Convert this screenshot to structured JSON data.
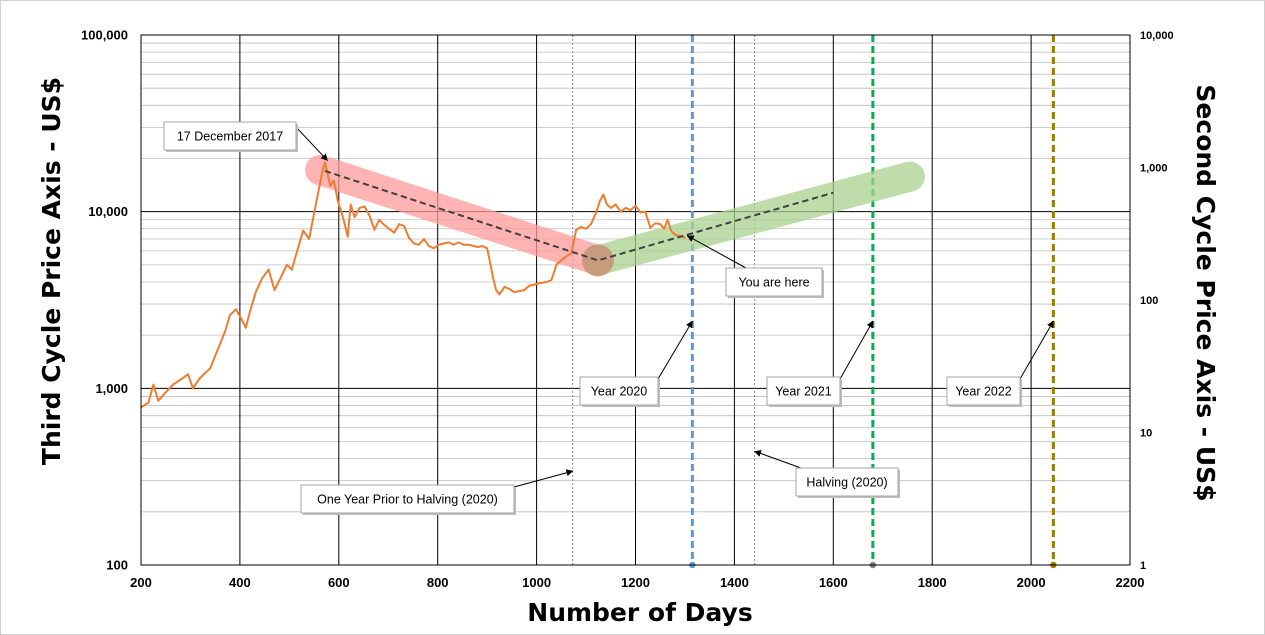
{
  "chart_data": {
    "type": "line",
    "xlabel": "Number of Days",
    "ylabel_left": "Third Cycle Price Axis - US$",
    "ylabel_right": "Second Cycle Price Axis - US$",
    "xlim": [
      200,
      2200
    ],
    "ylim_left": [
      100,
      100000
    ],
    "ylim_right": [
      1,
      10000
    ],
    "y_scale": "log",
    "grid": true,
    "x_ticks": [
      "200",
      "400",
      "600",
      "800",
      "1000",
      "1200",
      "1400",
      "1600",
      "1800",
      "2000",
      "2200"
    ],
    "y_ticks_left": [
      "100",
      "1,000",
      "10,000",
      "100,000"
    ],
    "y_ticks_right": [
      "1",
      "10",
      "100",
      "1,000",
      "10,000"
    ],
    "series": [
      {
        "color": "#ED7D31",
        "points": [
          [
            200,
            780
          ],
          [
            215,
            830
          ],
          [
            225,
            1050
          ],
          [
            235,
            850
          ],
          [
            250,
            950
          ],
          [
            265,
            1050
          ],
          [
            280,
            1120
          ],
          [
            295,
            1200
          ],
          [
            305,
            1000
          ],
          [
            320,
            1150
          ],
          [
            340,
            1300
          ],
          [
            355,
            1650
          ],
          [
            370,
            2100
          ],
          [
            380,
            2600
          ],
          [
            392,
            2800
          ],
          [
            402,
            2500
          ],
          [
            412,
            2200
          ],
          [
            420,
            2700
          ],
          [
            432,
            3500
          ],
          [
            445,
            4200
          ],
          [
            458,
            4700
          ],
          [
            470,
            3600
          ],
          [
            482,
            4200
          ],
          [
            495,
            5000
          ],
          [
            505,
            4700
          ],
          [
            515,
            5900
          ],
          [
            528,
            7800
          ],
          [
            540,
            7000
          ],
          [
            550,
            9800
          ],
          [
            560,
            13500
          ],
          [
            568,
            17500
          ],
          [
            572,
            19000
          ],
          [
            577,
            16500
          ],
          [
            583,
            14000
          ],
          [
            590,
            15000
          ],
          [
            598,
            11500
          ],
          [
            606,
            9800
          ],
          [
            612,
            8500
          ],
          [
            618,
            7200
          ],
          [
            624,
            11000
          ],
          [
            632,
            9300
          ],
          [
            642,
            10500
          ],
          [
            652,
            10700
          ],
          [
            662,
            9500
          ],
          [
            672,
            7900
          ],
          [
            682,
            9000
          ],
          [
            692,
            8400
          ],
          [
            702,
            8000
          ],
          [
            712,
            7600
          ],
          [
            722,
            8500
          ],
          [
            732,
            8300
          ],
          [
            742,
            7100
          ],
          [
            752,
            6600
          ],
          [
            762,
            6500
          ],
          [
            772,
            7000
          ],
          [
            782,
            6400
          ],
          [
            792,
            6200
          ],
          [
            802,
            6500
          ],
          [
            812,
            6600
          ],
          [
            822,
            6700
          ],
          [
            832,
            6500
          ],
          [
            842,
            6700
          ],
          [
            852,
            6500
          ],
          [
            862,
            6500
          ],
          [
            872,
            6400
          ],
          [
            882,
            6300
          ],
          [
            890,
            6400
          ],
          [
            900,
            6200
          ],
          [
            907,
            5000
          ],
          [
            912,
            4200
          ],
          [
            918,
            3600
          ],
          [
            925,
            3400
          ],
          [
            935,
            3750
          ],
          [
            945,
            3650
          ],
          [
            955,
            3500
          ],
          [
            965,
            3550
          ],
          [
            975,
            3600
          ],
          [
            985,
            3800
          ],
          [
            1000,
            3900
          ],
          [
            1010,
            3950
          ],
          [
            1020,
            4000
          ],
          [
            1030,
            4100
          ],
          [
            1040,
            5000
          ],
          [
            1050,
            5300
          ],
          [
            1060,
            5600
          ],
          [
            1070,
            5800
          ],
          [
            1080,
            7900
          ],
          [
            1090,
            8200
          ],
          [
            1100,
            8000
          ],
          [
            1110,
            8500
          ],
          [
            1120,
            9800
          ],
          [
            1128,
            11500
          ],
          [
            1135,
            12500
          ],
          [
            1142,
            11000
          ],
          [
            1150,
            10500
          ],
          [
            1160,
            11000
          ],
          [
            1170,
            10000
          ],
          [
            1180,
            10500
          ],
          [
            1190,
            10200
          ],
          [
            1200,
            10800
          ],
          [
            1210,
            9900
          ],
          [
            1220,
            10000
          ],
          [
            1230,
            8100
          ],
          [
            1240,
            8600
          ],
          [
            1250,
            8500
          ],
          [
            1258,
            8000
          ],
          [
            1265,
            9000
          ],
          [
            1272,
            7800
          ],
          [
            1280,
            7400
          ],
          [
            1290,
            7300
          ],
          [
            1300,
            7100
          ]
        ]
      }
    ],
    "trend_lines": [
      {
        "color": "#FF9999",
        "points": [
          [
            562,
            17200
          ],
          [
            1124,
            5300
          ]
        ]
      },
      {
        "color": "#A9D18E",
        "points": [
          [
            1124,
            5300
          ],
          [
            1755,
            15800
          ]
        ]
      },
      {
        "color": "#404040",
        "points": [
          [
            572,
            17000
          ],
          [
            1124,
            5300
          ],
          [
            1600,
            12800
          ]
        ]
      }
    ],
    "vertical_markers": [
      {
        "x": 1073,
        "color": "#808080"
      },
      {
        "x": 1315,
        "color": "#5B9BD5"
      },
      {
        "x": 1441,
        "color": "#808080"
      },
      {
        "x": 1680,
        "color": "#00B050"
      },
      {
        "x": 2045,
        "color": "#9C7C00"
      }
    ],
    "annotations": [
      {
        "text": "17 December 2017",
        "point": [
          577,
          19500
        ]
      },
      {
        "text": "You are here",
        "point": [
          1305,
          7300
        ]
      },
      {
        "text": "Year 2020",
        "point": [
          1315,
          2400
        ]
      },
      {
        "text": "Year 2021",
        "point": [
          1680,
          2400
        ]
      },
      {
        "text": "Year 2022",
        "point": [
          2045,
          2400
        ]
      },
      {
        "text": "One Year Prior to Halving (2020)",
        "point": [
          1073,
          340
        ]
      },
      {
        "text": "Halving (2020)",
        "point": [
          1441,
          440
        ]
      }
    ]
  }
}
